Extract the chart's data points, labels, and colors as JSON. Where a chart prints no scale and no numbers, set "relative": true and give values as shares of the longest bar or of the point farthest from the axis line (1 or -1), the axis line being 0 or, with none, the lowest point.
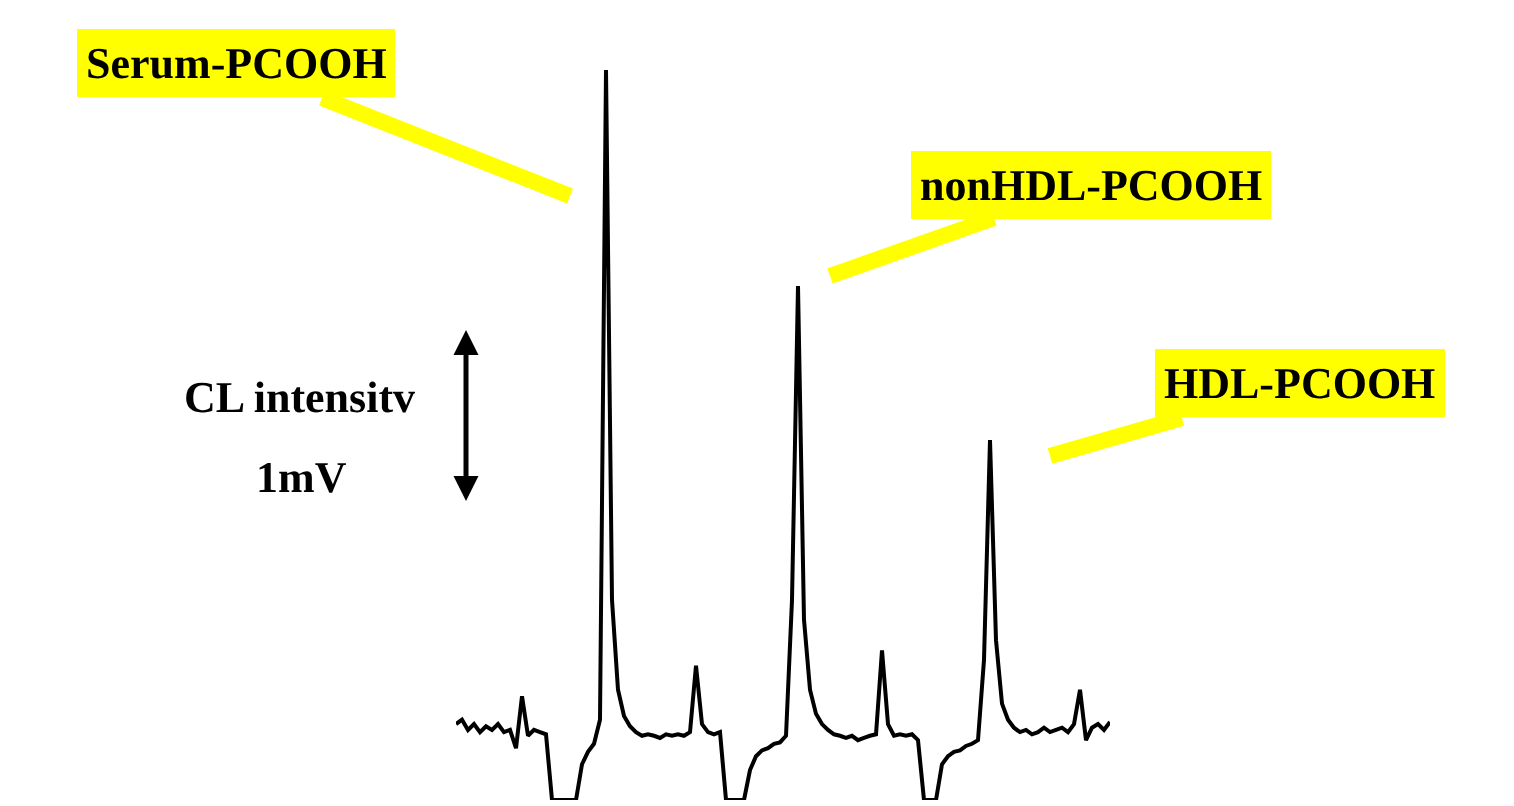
{
  "chart_data": {
    "type": "line",
    "relative": true,
    "marker": "none",
    "line_style": "solid",
    "categories": [
      null,
      null,
      null,
      null,
      null,
      null,
      null,
      null,
      null,
      null,
      null,
      null,
      null,
      null,
      null,
      null,
      null,
      null,
      null,
      null,
      null,
      null,
      null,
      null,
      null,
      null,
      null,
      null,
      null,
      null,
      null,
      null,
      null,
      null,
      null,
      null,
      null,
      null,
      null,
      null,
      null,
      null,
      null,
      null,
      null,
      null,
      null,
      null,
      null,
      null,
      null,
      null,
      null,
      null,
      null,
      null,
      null,
      null,
      null,
      null,
      null,
      null,
      null,
      null,
      null,
      null,
      null,
      null,
      null,
      null,
      null,
      null,
      null,
      null,
      null,
      null,
      null,
      null,
      null,
      null,
      null,
      null,
      null,
      null,
      null,
      null,
      null,
      null,
      null,
      null,
      null,
      null,
      null,
      null,
      null,
      null,
      null,
      null,
      null,
      null,
      null,
      null,
      null,
      null,
      null,
      null,
      null,
      null,
      null,
      null
    ],
    "series": [
      {
        "color": "#000000",
        "values": [
          0.104,
          0.11,
          0.096,
          0.104,
          0.093,
          0.101,
          0.096,
          0.104,
          0.093,
          0.096,
          0.071,
          0.142,
          0.088,
          0.096,
          0.093,
          0.09,
          0,
          0,
          0,
          0,
          0,
          0.049,
          0.066,
          0.077,
          0.11,
          1,
          0.274,
          0.151,
          0.115,
          0.101,
          0.093,
          0.088,
          0.09,
          0.088,
          0.085,
          0.09,
          0.088,
          0.09,
          0.088,
          0.093,
          0.184,
          0.104,
          0.093,
          0.09,
          0.093,
          0,
          0,
          0,
          0,
          0.041,
          0.06,
          0.068,
          0.071,
          0.077,
          0.079,
          0.088,
          0.274,
          0.704,
          0.247,
          0.151,
          0.118,
          0.104,
          0.096,
          0.09,
          0.088,
          0.085,
          0.088,
          0.082,
          0.085,
          0.088,
          0.09,
          0.205,
          0.104,
          0.088,
          0.09,
          0.088,
          0.09,
          0.082,
          0,
          0,
          0,
          0.049,
          0.06,
          0.066,
          0.068,
          0.074,
          0.077,
          0.082,
          0.192,
          0.493,
          0.219,
          0.132,
          0.11,
          0.099,
          0.093,
          0.096,
          0.09,
          0.093,
          0.099,
          0.093,
          0.096,
          0.099,
          0.093,
          0.104,
          0.151,
          0.082,
          0.099,
          0.104,
          0.096,
          0.107
        ]
      }
    ],
    "annotations": [
      "Serum-PCOOH",
      "nonHDL-PCOOH",
      "HDL-PCOOH",
      "CL intensitv",
      "1mV"
    ]
  }
}
